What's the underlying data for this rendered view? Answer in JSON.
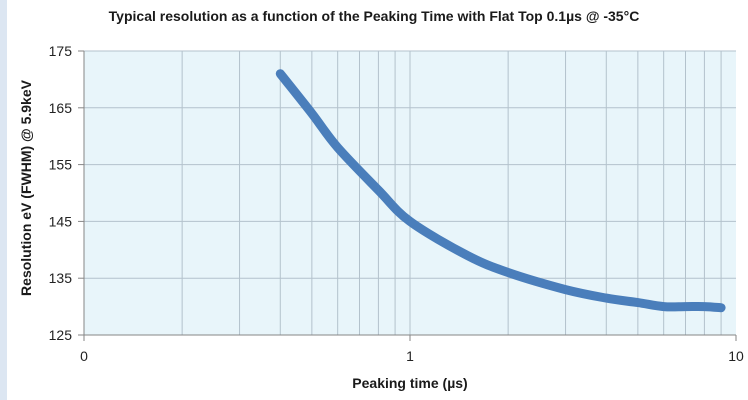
{
  "chart_data": {
    "type": "line",
    "title": "Typical resolution as a function of the Peaking Time with Flat Top 0.1µs @ -35°C",
    "xlabel": "Peaking time (µs)",
    "ylabel": "Resolution eV (FWHM) @ 5.9keV",
    "x_scale": "log",
    "xlim": [
      0.1,
      10
    ],
    "ylim": [
      125,
      175
    ],
    "x_ticks": [
      {
        "value": 0.1,
        "label": "0"
      },
      {
        "value": 1,
        "label": "1"
      },
      {
        "value": 10,
        "label": "10"
      }
    ],
    "y_ticks": [
      125,
      135,
      145,
      155,
      165,
      175
    ],
    "grid": true,
    "series": [
      {
        "color": "#4a7ebb",
        "x": [
          0.4,
          0.5,
          0.6,
          0.8,
          1.0,
          1.5,
          2.0,
          3.0,
          4.0,
          5.0,
          6.0,
          7.0,
          8.0,
          9.0
        ],
        "y": [
          171,
          164,
          158,
          150.5,
          145,
          139,
          136,
          133,
          131.5,
          130.7,
          130.0,
          130.0,
          130.0,
          129.8
        ]
      }
    ]
  },
  "colors": {
    "plot_bg": "#e8f5fa",
    "grid": "#b3c2cc",
    "line": "#4a7ebb"
  }
}
